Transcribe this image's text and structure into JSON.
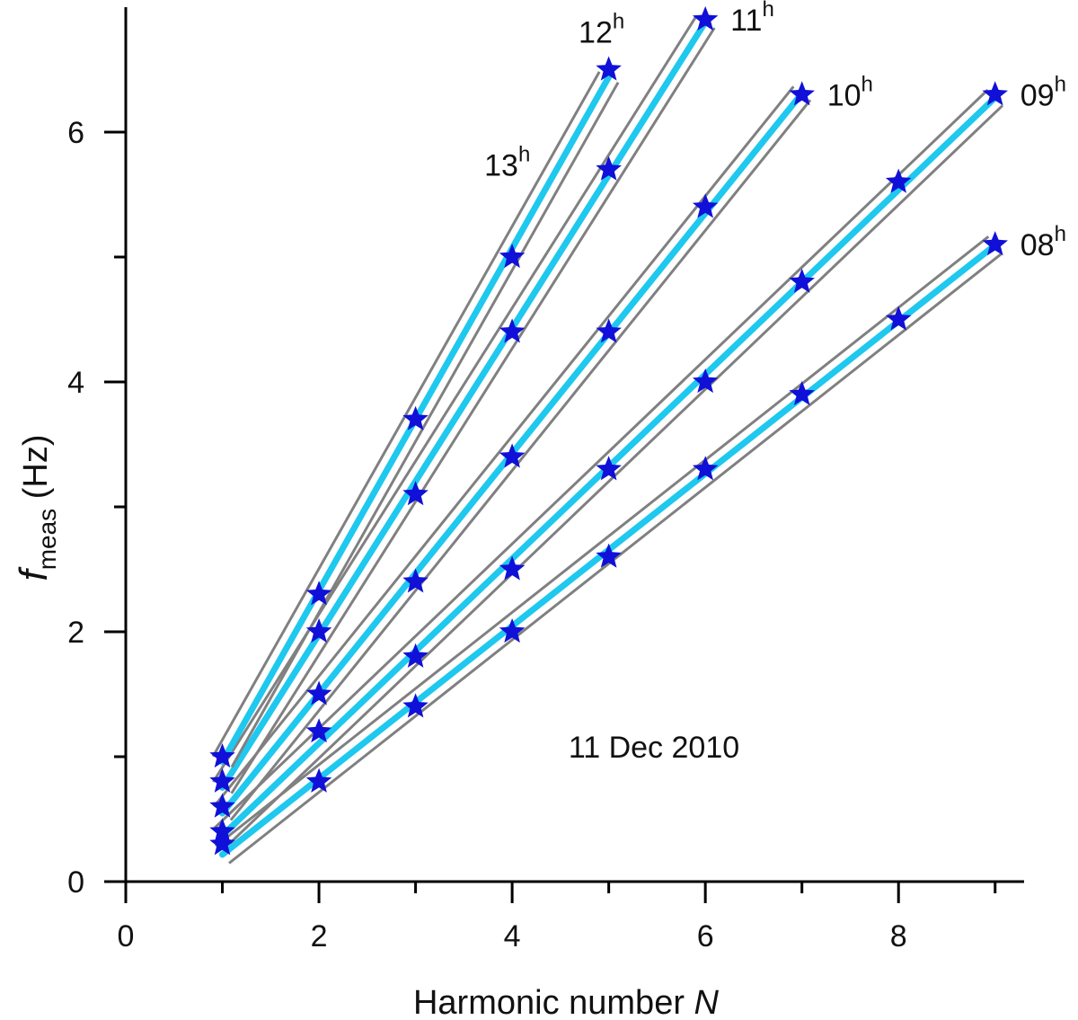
{
  "chart_data": {
    "type": "line",
    "xlabel": "Harmonic number",
    "xlabel_var": "N",
    "ylabel_var": "f",
    "ylabel_sub": "meas",
    "ylabel_unit": "(Hz)",
    "xlim": [
      0,
      9.3
    ],
    "ylim": [
      0,
      7.0
    ],
    "x_ticks": [
      0,
      2,
      4,
      6,
      8
    ],
    "y_ticks": [
      0,
      2,
      4,
      6
    ],
    "x_minor_ticks": [
      1,
      3,
      5,
      7,
      9
    ],
    "y_minor_ticks": [
      1,
      3,
      5
    ],
    "grid": false,
    "legend": "none",
    "annotation": "11 Dec 2010",
    "colors": {
      "marker": "#1010d8",
      "fit_line": "#1ec8ee",
      "bound_line": "#808080",
      "axis": "#000000"
    },
    "series": [
      {
        "name": "08",
        "sup": "h",
        "x": [
          1,
          2,
          3,
          4,
          5,
          6,
          7,
          8,
          9
        ],
        "y": [
          0.3,
          0.8,
          1.4,
          2.0,
          2.6,
          3.3,
          3.9,
          4.5,
          5.1
        ]
      },
      {
        "name": "09",
        "sup": "h",
        "x": [
          1,
          2,
          3,
          4,
          5,
          6,
          7,
          8,
          9
        ],
        "y": [
          0.4,
          1.2,
          1.8,
          2.5,
          3.3,
          4.0,
          4.8,
          5.6,
          6.3
        ]
      },
      {
        "name": "10",
        "sup": "h",
        "x": [
          1,
          2,
          3,
          4,
          5,
          6,
          7
        ],
        "y": [
          0.6,
          1.5,
          2.4,
          3.4,
          4.4,
          5.4,
          6.3
        ]
      },
      {
        "name": "11",
        "sup": "h",
        "x": [
          1,
          2,
          3,
          4,
          5,
          6
        ],
        "y": [
          0.8,
          2.0,
          3.1,
          4.4,
          5.7,
          6.9
        ]
      },
      {
        "name": "12",
        "sup": "h",
        "x": [
          1,
          2,
          3,
          4,
          5
        ],
        "y": [
          1.0,
          2.3,
          3.7,
          5.0,
          6.5
        ]
      }
    ],
    "extra_label": {
      "name": "13",
      "sup": "h"
    }
  }
}
